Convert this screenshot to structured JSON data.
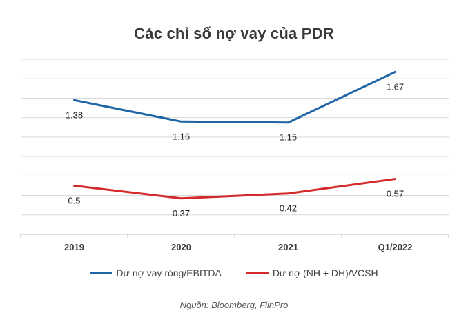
{
  "chart_data": {
    "type": "line",
    "title": "Các chỉ số nợ vay của PDR",
    "categories": [
      "2019",
      "2020",
      "2021",
      "Q1/2022"
    ],
    "series": [
      {
        "name": "Dư nợ vay ròng/EBITDA",
        "values": [
          1.38,
          1.16,
          1.15,
          1.67
        ],
        "labels": [
          "1.38",
          "1.16",
          "1.15",
          "1.67"
        ],
        "color": "#1f65a6"
      },
      {
        "name": "Dư nợ (NH + DH)/VCSH",
        "values": [
          0.5,
          0.37,
          0.42,
          0.57
        ],
        "labels": [
          "0.5",
          "0.37",
          "0.42",
          "0.57"
        ],
        "color": "#d42a2a"
      }
    ],
    "ylim": [
      0,
      1.8
    ],
    "grid": true,
    "legend_position": "bottom",
    "source": "Nguồn: Bloomberg, FiinPro",
    "gridline_color": "#d9d9d9"
  }
}
